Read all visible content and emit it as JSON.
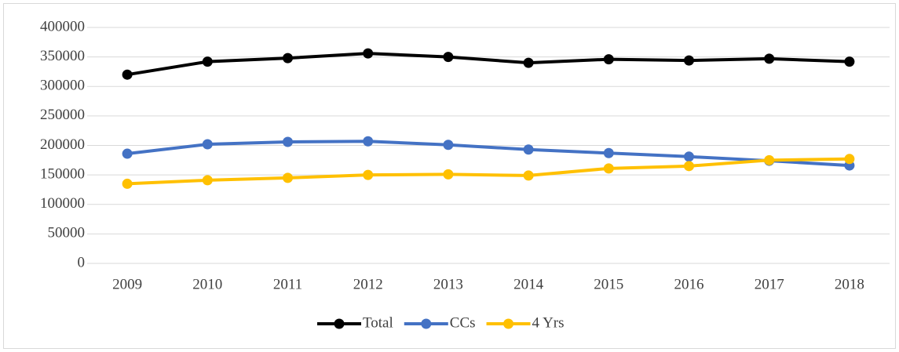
{
  "chart_data": {
    "type": "line",
    "categories": [
      "2009",
      "2010",
      "2011",
      "2012",
      "2013",
      "2014",
      "2015",
      "2016",
      "2017",
      "2018"
    ],
    "series": [
      {
        "name": "Total",
        "color": "#000000",
        "values": [
          320000,
          342000,
          348000,
          356000,
          350000,
          340000,
          346000,
          344000,
          347000,
          342000
        ]
      },
      {
        "name": "CCs",
        "color": "#4472c4",
        "values": [
          186000,
          202000,
          206000,
          207000,
          201000,
          193000,
          187000,
          181000,
          174000,
          166000
        ]
      },
      {
        "name": "4 Yrs",
        "color": "#ffc000",
        "values": [
          135000,
          141000,
          145000,
          150000,
          151000,
          149000,
          161000,
          165000,
          175000,
          177000
        ]
      }
    ],
    "ylim": [
      0,
      400000
    ],
    "yticks": [
      0,
      50000,
      100000,
      150000,
      200000,
      250000,
      300000,
      350000,
      400000
    ],
    "grid": true,
    "legend": "bottom"
  }
}
